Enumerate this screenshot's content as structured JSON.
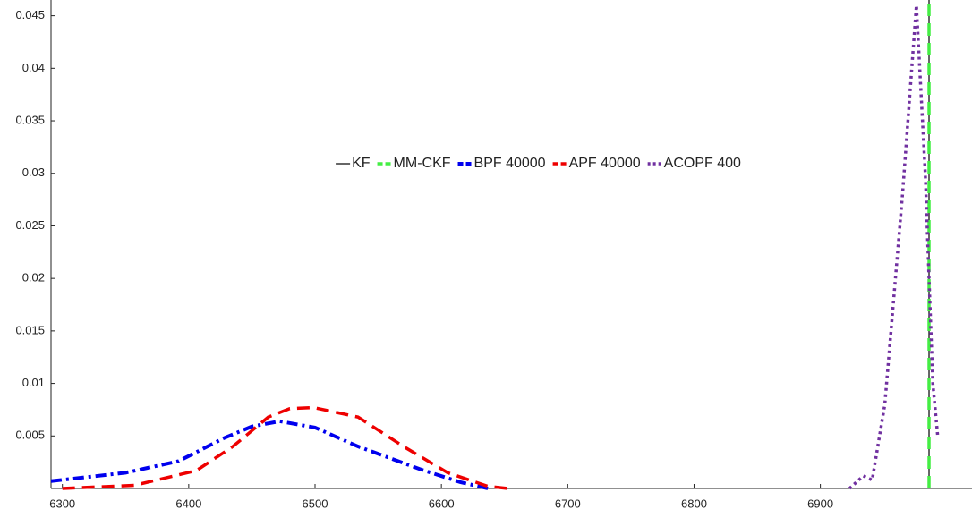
{
  "chart_data": {
    "type": "line",
    "xlim": [
      6291,
      7020
    ],
    "ylim": [
      0,
      0.0465
    ],
    "xticks": [
      6300,
      6400,
      6500,
      6600,
      6700,
      6800,
      6900
    ],
    "yticks": [
      0.005,
      0.01,
      0.015,
      0.02,
      0.025,
      0.03,
      0.035,
      0.04,
      0.045
    ],
    "legend": "center",
    "series": [
      {
        "name": "KF",
        "color": "#333333",
        "dash": "solid",
        "x": [
          6986,
          6986
        ],
        "values": [
          0,
          0.0465
        ]
      },
      {
        "name": "MM-CKF",
        "color": "#44ee44",
        "dash": "dashed",
        "x": [
          6986,
          6986
        ],
        "values": [
          0,
          0.0465
        ]
      },
      {
        "name": "BPF 40000",
        "color": "#0000ee",
        "dash": "dashdot",
        "x": [
          6291,
          6350,
          6392,
          6428,
          6450,
          6472,
          6500,
          6534,
          6584,
          6615,
          6637
        ],
        "values": [
          0.0007,
          0.0015,
          0.0026,
          0.0048,
          0.0059,
          0.0064,
          0.0058,
          0.004,
          0.0018,
          0.0006,
          0
        ]
      },
      {
        "name": "APF 40000",
        "color": "#ee0000",
        "dash": "dashed",
        "x": [
          6300,
          6357,
          6406,
          6435,
          6463,
          6480,
          6499,
          6534,
          6570,
          6605,
          6637,
          6653
        ],
        "values": [
          0,
          0.0003,
          0.0017,
          0.004,
          0.0068,
          0.0076,
          0.0077,
          0.0068,
          0.004,
          0.0015,
          0.0002,
          0
        ]
      },
      {
        "name": "ACOPF 400",
        "color": "#7030a0",
        "dash": "dotted",
        "x": [
          6923,
          6934,
          6941,
          6951,
          6965,
          6976,
          6983,
          6989,
          6993
        ],
        "values": [
          0,
          0.0012,
          0.0008,
          0.008,
          0.028,
          0.046,
          0.03,
          0.01,
          0.0048
        ]
      }
    ]
  }
}
